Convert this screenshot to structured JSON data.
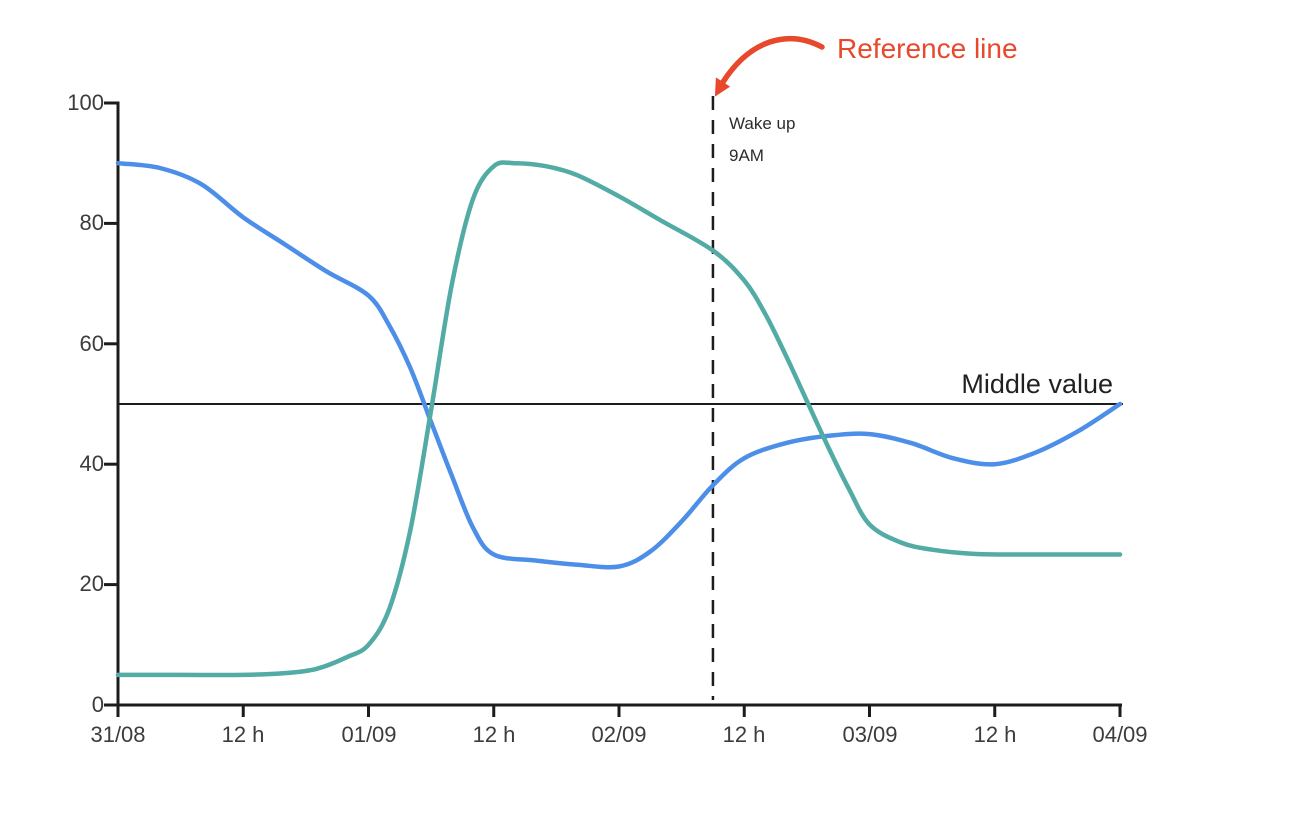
{
  "chart_data": {
    "type": "line",
    "title": "",
    "grid": "off",
    "legend": "none",
    "x_axis": {
      "tick_labels": [
        "31/08",
        "12 h",
        "01/09",
        "12 h",
        "02/09",
        "12 h",
        "03/09",
        "12 h",
        "04/09"
      ],
      "range_hours": [
        0,
        96
      ],
      "hours_per_tick": 12
    },
    "y_axis": {
      "tick_labels": [
        "100",
        "80",
        "60",
        "40",
        "20",
        "0"
      ],
      "range": [
        0,
        100
      ]
    },
    "axis_color": "#1C1C1C",
    "series": [
      {
        "name": "blue-line",
        "color": "#4D8FE8",
        "points_hours_value": [
          [
            0,
            90
          ],
          [
            4,
            89.2
          ],
          [
            8,
            86.5
          ],
          [
            12,
            81
          ],
          [
            16,
            76.5
          ],
          [
            20,
            72
          ],
          [
            24,
            68
          ],
          [
            26,
            63
          ],
          [
            28,
            56
          ],
          [
            30,
            47
          ],
          [
            32,
            38
          ],
          [
            34,
            29.5
          ],
          [
            36,
            25
          ],
          [
            40,
            24
          ],
          [
            44,
            23.3
          ],
          [
            48,
            23
          ],
          [
            51,
            25.5
          ],
          [
            54,
            30.5
          ],
          [
            57,
            36.5
          ],
          [
            60,
            41
          ],
          [
            64,
            43.5
          ],
          [
            68,
            44.7
          ],
          [
            72,
            45
          ],
          [
            76,
            43.5
          ],
          [
            80,
            41
          ],
          [
            84,
            40
          ],
          [
            88,
            42
          ],
          [
            92,
            45.5
          ],
          [
            96,
            50
          ]
        ]
      },
      {
        "name": "teal-line",
        "color": "#52ABA4",
        "points_hours_value": [
          [
            0,
            5
          ],
          [
            6,
            5
          ],
          [
            12,
            5
          ],
          [
            16,
            5.3
          ],
          [
            19,
            6
          ],
          [
            22,
            8
          ],
          [
            24,
            10
          ],
          [
            26,
            16
          ],
          [
            28,
            29
          ],
          [
            30,
            49
          ],
          [
            32,
            70
          ],
          [
            34,
            84
          ],
          [
            36,
            89.5
          ],
          [
            38,
            90
          ],
          [
            41,
            89.5
          ],
          [
            44,
            88
          ],
          [
            48,
            84.5
          ],
          [
            52,
            80.5
          ],
          [
            57,
            75.5
          ],
          [
            60,
            70.5
          ],
          [
            62,
            65
          ],
          [
            64,
            58
          ],
          [
            66,
            50.5
          ],
          [
            68,
            43
          ],
          [
            70,
            36
          ],
          [
            72,
            30
          ],
          [
            75,
            27
          ],
          [
            78,
            25.8
          ],
          [
            82,
            25.1
          ],
          [
            86,
            25
          ],
          [
            91,
            25
          ],
          [
            96,
            25
          ]
        ]
      }
    ],
    "horizontal_reference": {
      "value": 50,
      "label": "Middle value",
      "color": "#1C1C1C"
    },
    "vertical_reference": {
      "hour": 57,
      "time_label_line1": "Wake up",
      "time_label_line2": "9AM",
      "style": "dashed",
      "color": "#1C1C1C"
    },
    "annotation": {
      "label": "Reference line",
      "color": "#E8492C",
      "arrow": true
    }
  }
}
